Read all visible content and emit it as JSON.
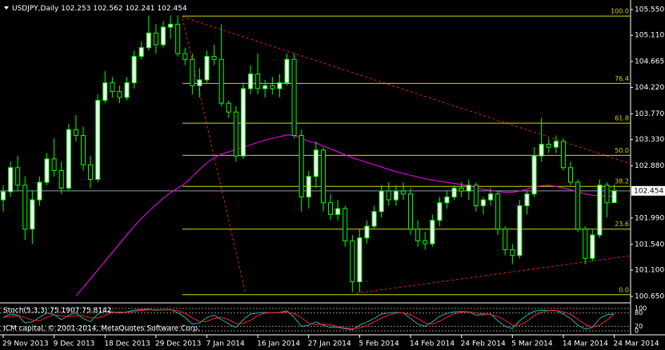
{
  "chart_data": {
    "type": "candlestick",
    "title": "USDJPY,Daily",
    "categories": [
      "29 Nov 2013",
      null,
      null,
      null,
      null,
      null,
      null,
      "9 Dec 2013",
      null,
      null,
      null,
      null,
      null,
      null,
      "18 Dec 2013",
      null,
      null,
      null,
      null,
      null,
      null,
      "29 Dec 2013",
      null,
      null,
      null,
      null,
      null,
      null,
      "7 Jan 2014",
      null,
      null,
      null,
      null,
      null,
      null,
      "16 Jan 2014",
      null,
      null,
      null,
      null,
      null,
      null,
      "27 Jan 2014",
      null,
      null,
      null,
      null,
      null,
      null,
      "5 Feb 2014",
      null,
      null,
      null,
      null,
      null,
      null,
      "14 Feb 2014",
      null,
      null,
      null,
      null,
      null,
      null,
      "24 Feb 2014",
      null,
      null,
      null,
      null,
      null,
      null,
      "5 Mar 2014",
      null,
      null,
      null,
      null,
      null,
      null,
      "14 Mar 2014",
      null,
      null,
      null,
      null,
      null,
      null,
      "24 Mar 2014"
    ],
    "candles": [
      [
        102.3,
        102.55,
        102.1,
        102.44
      ],
      [
        102.44,
        102.95,
        102.35,
        102.85
      ],
      [
        102.85,
        103.05,
        102.45,
        102.55
      ],
      [
        102.55,
        102.7,
        101.62,
        101.8
      ],
      [
        101.8,
        102.45,
        101.55,
        102.3
      ],
      [
        102.3,
        102.7,
        102.2,
        102.6
      ],
      [
        102.6,
        103.1,
        102.55,
        103.0
      ],
      [
        103.0,
        103.35,
        102.7,
        102.8
      ],
      [
        102.8,
        102.95,
        102.4,
        102.5
      ],
      [
        102.5,
        103.6,
        102.45,
        103.5
      ],
      [
        103.5,
        103.75,
        103.3,
        103.4
      ],
      [
        103.4,
        103.55,
        102.8,
        102.9
      ],
      [
        102.9,
        103.05,
        102.5,
        102.65
      ],
      [
        102.65,
        104.1,
        102.6,
        104.0
      ],
      [
        104.0,
        104.5,
        103.95,
        104.3
      ],
      [
        104.3,
        104.4,
        104.05,
        104.15
      ],
      [
        104.15,
        104.25,
        103.95,
        104.05
      ],
      [
        104.05,
        104.4,
        104.0,
        104.3
      ],
      [
        104.3,
        104.85,
        104.2,
        104.75
      ],
      [
        104.75,
        105.0,
        104.7,
        104.9
      ],
      [
        104.9,
        105.45,
        104.85,
        105.15
      ],
      [
        105.15,
        105.3,
        104.8,
        104.95
      ],
      [
        104.95,
        105.35,
        104.9,
        105.25
      ],
      [
        105.25,
        105.45,
        105.05,
        105.3
      ],
      [
        105.3,
        105.45,
        104.75,
        104.8
      ],
      [
        104.8,
        104.9,
        104.6,
        104.7
      ],
      [
        104.7,
        104.8,
        104.1,
        104.25
      ],
      [
        104.25,
        104.55,
        104.05,
        104.35
      ],
      [
        104.35,
        104.85,
        104.3,
        104.75
      ],
      [
        104.75,
        104.95,
        104.6,
        104.7
      ],
      [
        104.7,
        105.3,
        103.9,
        103.95
      ],
      [
        103.95,
        104.0,
        103.7,
        103.8
      ],
      [
        103.8,
        103.9,
        102.95,
        103.05
      ],
      [
        103.05,
        104.3,
        103.0,
        104.2
      ],
      [
        104.2,
        104.6,
        104.1,
        104.45
      ],
      [
        104.45,
        104.8,
        104.1,
        104.2
      ],
      [
        104.2,
        104.35,
        104.05,
        104.25
      ],
      [
        104.25,
        104.4,
        104.1,
        104.2
      ],
      [
        104.2,
        104.45,
        104.05,
        104.3
      ],
      [
        104.3,
        104.8,
        104.25,
        104.7
      ],
      [
        104.7,
        104.8,
        103.35,
        103.4
      ],
      [
        103.4,
        103.5,
        102.1,
        102.35
      ],
      [
        102.35,
        102.8,
        102.15,
        102.7
      ],
      [
        102.7,
        103.3,
        102.5,
        103.15
      ],
      [
        103.15,
        103.2,
        102.1,
        102.25
      ],
      [
        102.25,
        102.4,
        101.95,
        102.05
      ],
      [
        102.05,
        102.3,
        101.95,
        102.15
      ],
      [
        102.15,
        102.2,
        101.5,
        101.6
      ],
      [
        101.6,
        101.7,
        100.72,
        100.9
      ],
      [
        100.9,
        101.8,
        100.72,
        101.65
      ],
      [
        101.65,
        101.95,
        101.55,
        101.85
      ],
      [
        101.85,
        102.2,
        101.8,
        102.1
      ],
      [
        102.1,
        102.55,
        102.0,
        102.45
      ],
      [
        102.45,
        102.6,
        102.2,
        102.3
      ],
      [
        102.3,
        102.55,
        102.2,
        102.45
      ],
      [
        102.45,
        102.6,
        102.3,
        102.4
      ],
      [
        102.4,
        102.5,
        101.7,
        101.8
      ],
      [
        101.8,
        101.95,
        101.5,
        101.6
      ],
      [
        101.6,
        101.75,
        101.45,
        101.55
      ],
      [
        101.55,
        102.05,
        101.5,
        101.95
      ],
      [
        101.95,
        102.35,
        101.85,
        102.25
      ],
      [
        102.25,
        102.45,
        102.15,
        102.35
      ],
      [
        102.35,
        102.55,
        102.3,
        102.5
      ],
      [
        102.5,
        102.6,
        102.35,
        102.45
      ],
      [
        102.45,
        102.65,
        102.3,
        102.55
      ],
      [
        102.55,
        102.6,
        102.1,
        102.2
      ],
      [
        102.2,
        102.35,
        102.05,
        102.3
      ],
      [
        102.3,
        102.5,
        102.2,
        102.4
      ],
      [
        102.4,
        102.45,
        101.7,
        101.8
      ],
      [
        101.8,
        101.85,
        101.35,
        101.45
      ],
      [
        101.45,
        101.55,
        101.2,
        101.35
      ],
      [
        101.35,
        102.3,
        101.3,
        102.2
      ],
      [
        102.2,
        102.45,
        102.05,
        102.4
      ],
      [
        102.4,
        103.2,
        102.35,
        103.05
      ],
      [
        103.05,
        103.7,
        102.95,
        103.25
      ],
      [
        103.25,
        103.35,
        103.1,
        103.2
      ],
      [
        103.2,
        103.4,
        103.1,
        103.3
      ],
      [
        103.3,
        103.35,
        102.8,
        102.85
      ],
      [
        102.85,
        102.95,
        102.55,
        102.6
      ],
      [
        102.6,
        102.65,
        101.75,
        101.8
      ],
      [
        101.8,
        101.85,
        101.2,
        101.3
      ],
      [
        101.3,
        101.8,
        101.25,
        101.7
      ],
      [
        101.7,
        102.65,
        101.65,
        102.55
      ],
      [
        102.55,
        102.6,
        102.0,
        102.25
      ],
      [
        102.253,
        102.562,
        102.241,
        102.454
      ]
    ],
    "bull_color": "#ffffff",
    "bear_color": "#000000",
    "outline_color": "#00ff00",
    "ylim": [
      100.554,
      105.714
    ],
    "yticks": [
      {
        "value": 105.55,
        "label": "105.550"
      },
      {
        "value": 105.11,
        "label": "105.110"
      },
      {
        "value": 104.665,
        "label": "104.665"
      },
      {
        "value": 104.22,
        "label": "104.220"
      },
      {
        "value": 103.77,
        "label": "103.770"
      },
      {
        "value": 103.33,
        "label": "103.330"
      },
      {
        "value": 102.88,
        "label": "102.880"
      },
      {
        "value": 101.99,
        "label": "101.990"
      },
      {
        "value": 101.54,
        "label": "101.540"
      },
      {
        "value": 101.1,
        "label": "101.100"
      },
      {
        "value": 100.65,
        "label": "100.650"
      }
    ],
    "ma": {
      "color": "#ff00ff",
      "values": [
        null,
        null,
        null,
        null,
        null,
        null,
        null,
        null,
        null,
        null,
        100.66,
        100.8,
        100.95,
        101.1,
        101.25,
        101.4,
        101.55,
        101.7,
        101.85,
        101.98,
        102.1,
        102.22,
        102.33,
        102.42,
        102.5,
        102.58,
        102.7,
        102.82,
        102.93,
        103.02,
        103.08,
        103.12,
        103.16,
        103.2,
        103.24,
        103.28,
        103.32,
        103.35,
        103.38,
        103.41,
        103.4,
        103.35,
        103.3,
        103.27,
        103.22,
        103.17,
        103.12,
        103.07,
        103.02,
        102.98,
        102.94,
        102.9,
        102.86,
        102.82,
        102.78,
        102.75,
        102.72,
        102.69,
        102.66,
        102.64,
        102.62,
        102.6,
        102.58,
        102.56,
        102.54,
        102.51,
        102.48,
        102.46,
        102.44,
        102.43,
        102.43,
        102.45,
        102.48,
        102.52,
        102.54,
        102.55,
        102.53,
        102.5,
        102.47,
        102.44,
        102.4,
        102.38,
        102.37,
        102.36,
        102.36
      ]
    },
    "fib_color": "#d4d400",
    "fib_levels": [
      {
        "label": "100.0",
        "price": 105.44
      },
      {
        "label": "76.4",
        "price": 104.29
      },
      {
        "label": "61.8",
        "price": 103.61
      },
      {
        "label": "50.0",
        "price": 103.06
      },
      {
        "label": "38.2",
        "price": 102.53
      },
      {
        "label": "23.6",
        "price": 101.8
      },
      {
        "label": "0.0",
        "price": 100.68
      }
    ],
    "price_line_color": "#8a9ab0",
    "stoch": {
      "title": "Stoch(5,3,3)",
      "ylim": [
        0,
        100
      ],
      "yticks": [
        100,
        80,
        20,
        0
      ],
      "series": [
        {
          "color": "#20b2aa",
          "values": [
            60,
            75,
            70,
            35,
            40,
            60,
            80,
            72,
            50,
            70,
            80,
            55,
            40,
            75,
            88,
            85,
            80,
            85,
            92,
            95,
            96,
            92,
            94,
            95,
            80,
            60,
            30,
            35,
            60,
            70,
            50,
            30,
            15,
            50,
            75,
            80,
            82,
            80,
            82,
            90,
            60,
            20,
            25,
            40,
            25,
            15,
            15,
            10,
            5,
            25,
            40,
            55,
            75,
            80,
            82,
            80,
            55,
            30,
            20,
            40,
            65,
            78,
            85,
            86,
            85,
            70,
            72,
            75,
            45,
            20,
            10,
            45,
            70,
            88,
            92,
            90,
            91,
            75,
            55,
            25,
            8,
            15,
            55,
            72,
            75.1907
          ]
        },
        {
          "color": "#ff2020",
          "values": [
            60,
            65,
            68,
            60,
            48,
            45,
            60,
            71,
            67,
            64,
            67,
            68,
            58,
            57,
            68,
            83,
            84,
            83,
            86,
            91,
            94,
            94,
            94,
            94,
            90,
            78,
            57,
            42,
            42,
            55,
            60,
            50,
            32,
            32,
            47,
            68,
            79,
            81,
            81,
            84,
            77,
            57,
            35,
            28,
            30,
            27,
            18,
            13,
            10,
            13,
            23,
            40,
            57,
            70,
            79,
            81,
            72,
            55,
            35,
            30,
            42,
            61,
            76,
            83,
            85,
            80,
            76,
            72,
            64,
            47,
            25,
            25,
            42,
            68,
            83,
            90,
            91,
            85,
            74,
            52,
            29,
            16,
            26,
            47,
            75.8142
          ]
        }
      ]
    },
    "copyright": "ICM capital, © 2001-2014, MetaQuotes Software Corp."
  }
}
